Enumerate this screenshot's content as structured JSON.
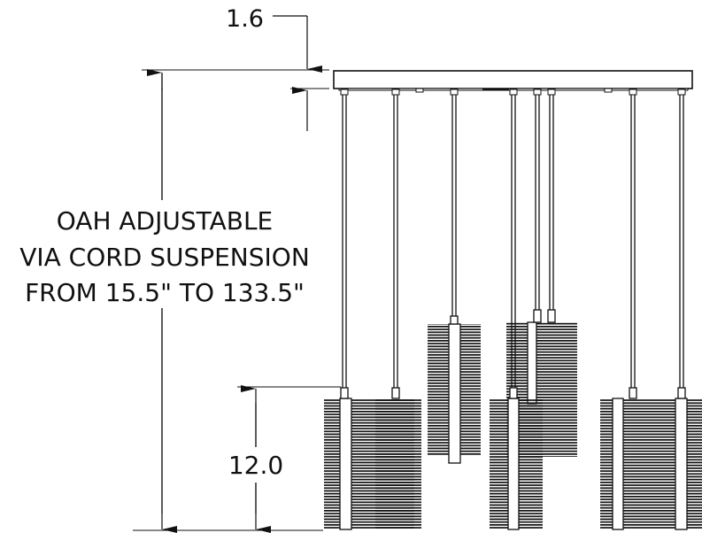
{
  "dimensions": {
    "top_plate_thickness": "1.6",
    "pendant_height": "12.0",
    "oah_note": {
      "line1": "OAH ADJUSTABLE",
      "line2": "VIA CORD SUSPENSION",
      "line3": "FROM 15.5\" TO 133.5\""
    }
  },
  "colors": {
    "line": "#111111",
    "background": "#ffffff"
  }
}
